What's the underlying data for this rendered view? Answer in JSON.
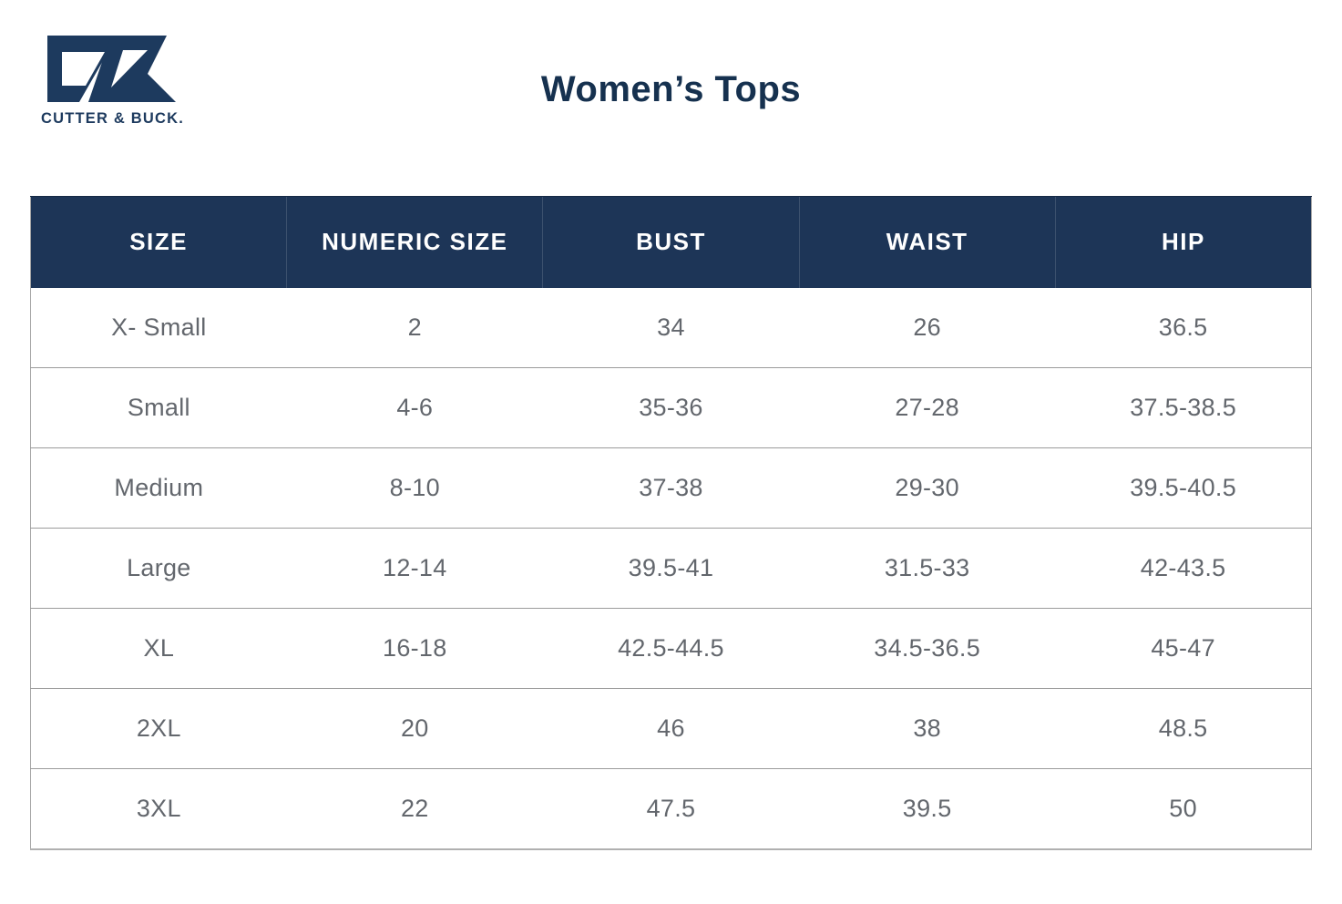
{
  "brand": {
    "wordmark": "CUTTER & BUCK.",
    "mark_name": "cb-monogram"
  },
  "page_title": "Women’s Tops",
  "colors": {
    "brand_navy": "#1d3a5e",
    "title_navy": "#16314f",
    "header_bg": "#1d3557",
    "header_text": "#ffffff",
    "cell_text": "#63676d",
    "row_border": "#9c9c9c"
  },
  "chart_data": {
    "type": "table",
    "title": "Women’s Tops",
    "columns": [
      "SIZE",
      "NUMERIC SIZE",
      "BUST",
      "WAIST",
      "HIP"
    ],
    "rows": [
      [
        "X- Small",
        "2",
        "34",
        "26",
        "36.5"
      ],
      [
        "Small",
        "4-6",
        "35-36",
        "27-28",
        "37.5-38.5"
      ],
      [
        "Medium",
        "8-10",
        "37-38",
        "29-30",
        "39.5-40.5"
      ],
      [
        "Large",
        "12-14",
        "39.5-41",
        "31.5-33",
        "42-43.5"
      ],
      [
        "XL",
        "16-18",
        "42.5-44.5",
        "34.5-36.5",
        "45-47"
      ],
      [
        "2XL",
        "20",
        "46",
        "38",
        "48.5"
      ],
      [
        "3XL",
        "22",
        "47.5",
        "39.5",
        "50"
      ]
    ]
  }
}
